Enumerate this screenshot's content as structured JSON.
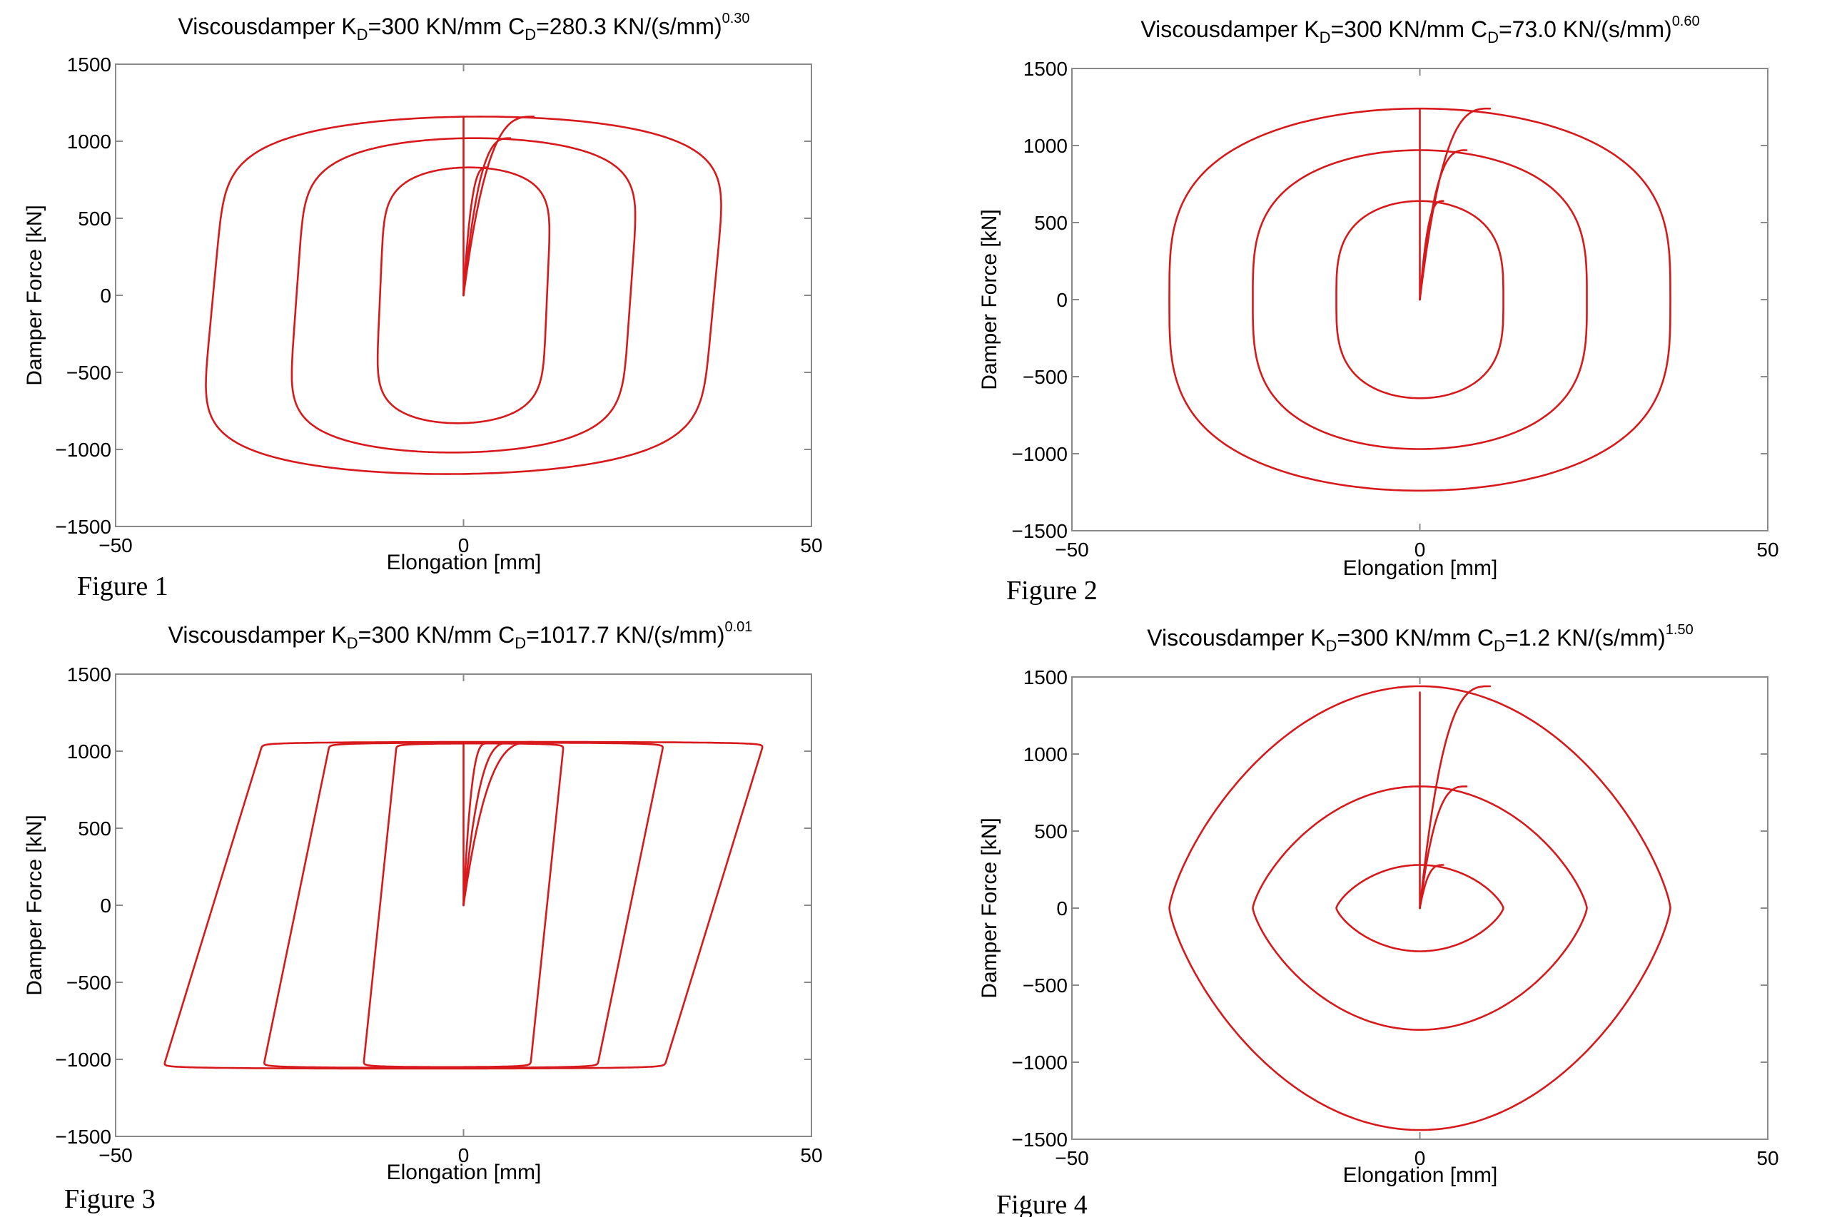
{
  "colors": {
    "curve": "#d7191c",
    "axis": "#8a8a8a",
    "text": "#000000"
  },
  "chart_data": [
    {
      "type": "line",
      "figure_label": "Figure 1",
      "title_main": "Viscousdamper K",
      "title_k_sub": "D",
      "title_mid": "=300 KN/mm C",
      "title_c_sub": "D",
      "title_tail": "=280.3 KN/(s/mm)",
      "title_exp": "0.30",
      "xlabel": "Elongation [mm]",
      "ylabel": "Damper Force [kN]",
      "xlim": [
        -50,
        50
      ],
      "ylim": [
        -1500,
        1500
      ],
      "xticks": [
        -50,
        0,
        50
      ],
      "xtick_labels": [
        "−50",
        "0",
        "50"
      ],
      "yticks": [
        -1500,
        -1000,
        -500,
        0,
        500,
        1000,
        1500
      ],
      "ytick_labels": [
        "−1500",
        "−1000",
        "−500",
        "0",
        "500",
        "1000",
        "1500"
      ],
      "exponent": 0.3,
      "force_levels": [
        1160,
        1020,
        830
      ],
      "amplitudes": [
        36,
        24,
        12
      ],
      "series": [
        {
          "x": [
            0,
            0
          ],
          "y": [
            0,
            1160
          ]
        }
      ]
    },
    {
      "type": "line",
      "figure_label": "Figure 2",
      "title_main": "Viscousdamper K",
      "title_k_sub": "D",
      "title_mid": "=300 KN/mm C",
      "title_c_sub": "D",
      "title_tail": "=73.0 KN/(s/mm)",
      "title_exp": "0.60",
      "xlabel": "Elongation [mm]",
      "ylabel": "Damper Force [kN]",
      "xlim": [
        -50,
        50
      ],
      "ylim": [
        -1500,
        1500
      ],
      "xticks": [
        -50,
        0,
        50
      ],
      "xtick_labels": [
        "−50",
        "0",
        "50"
      ],
      "yticks": [
        -1500,
        -1000,
        -500,
        0,
        500,
        1000,
        1500
      ],
      "ytick_labels": [
        "−1500",
        "−1000",
        "−500",
        "0",
        "500",
        "1000",
        "1500"
      ],
      "exponent": 0.6,
      "force_levels": [
        1240,
        970,
        640
      ],
      "amplitudes": [
        36,
        24,
        12
      ],
      "series": [
        {
          "x": [
            0,
            0
          ],
          "y": [
            0,
            1240
          ]
        }
      ]
    },
    {
      "type": "line",
      "figure_label": "Figure 3",
      "title_main": "Viscousdamper K",
      "title_k_sub": "D",
      "title_mid": "=300 KN/mm C",
      "title_c_sub": "D",
      "title_tail": "=1017.7 KN/(s/mm)",
      "title_exp": "0.01",
      "xlabel": "Elongation [mm]",
      "ylabel": "Damper Force [kN]",
      "xlim": [
        -50,
        50
      ],
      "ylim": [
        -1500,
        1500
      ],
      "xticks": [
        -50,
        0,
        50
      ],
      "xtick_labels": [
        "−50",
        "0",
        "50"
      ],
      "yticks": [
        -1500,
        -1000,
        -500,
        0,
        500,
        1000,
        1500
      ],
      "ytick_labels": [
        "−1500",
        "−1000",
        "−500",
        "0",
        "500",
        "1000",
        "1500"
      ],
      "exponent": 0.01,
      "force_levels": [
        1060,
        1055,
        1050
      ],
      "amplitudes": [
        36,
        24,
        12
      ],
      "series": [
        {
          "x": [
            0,
            0
          ],
          "y": [
            0,
            1050
          ]
        }
      ]
    },
    {
      "type": "line",
      "figure_label": "Figure 4",
      "title_main": "Viscousdamper K",
      "title_k_sub": "D",
      "title_mid": "=300 KN/mm C",
      "title_c_sub": "D",
      "title_tail": "=1.2 KN/(s/mm)",
      "title_exp": "1.50",
      "xlabel": "Elongation [mm]",
      "ylabel": "Damper Force [kN]",
      "xlim": [
        -50,
        50
      ],
      "ylim": [
        -1500,
        1500
      ],
      "xticks": [
        -50,
        0,
        50
      ],
      "xtick_labels": [
        "−50",
        "0",
        "50"
      ],
      "yticks": [
        -1500,
        -1000,
        -500,
        0,
        500,
        1000,
        1500
      ],
      "ytick_labels": [
        "−1500",
        "−1000",
        "−500",
        "0",
        "500",
        "1000",
        "1500"
      ],
      "exponent": 1.5,
      "force_levels": [
        1440,
        790,
        280
      ],
      "amplitudes": [
        36,
        24,
        12
      ],
      "series": [
        {
          "x": [
            0,
            0
          ],
          "y": [
            0,
            1400
          ]
        }
      ]
    }
  ]
}
